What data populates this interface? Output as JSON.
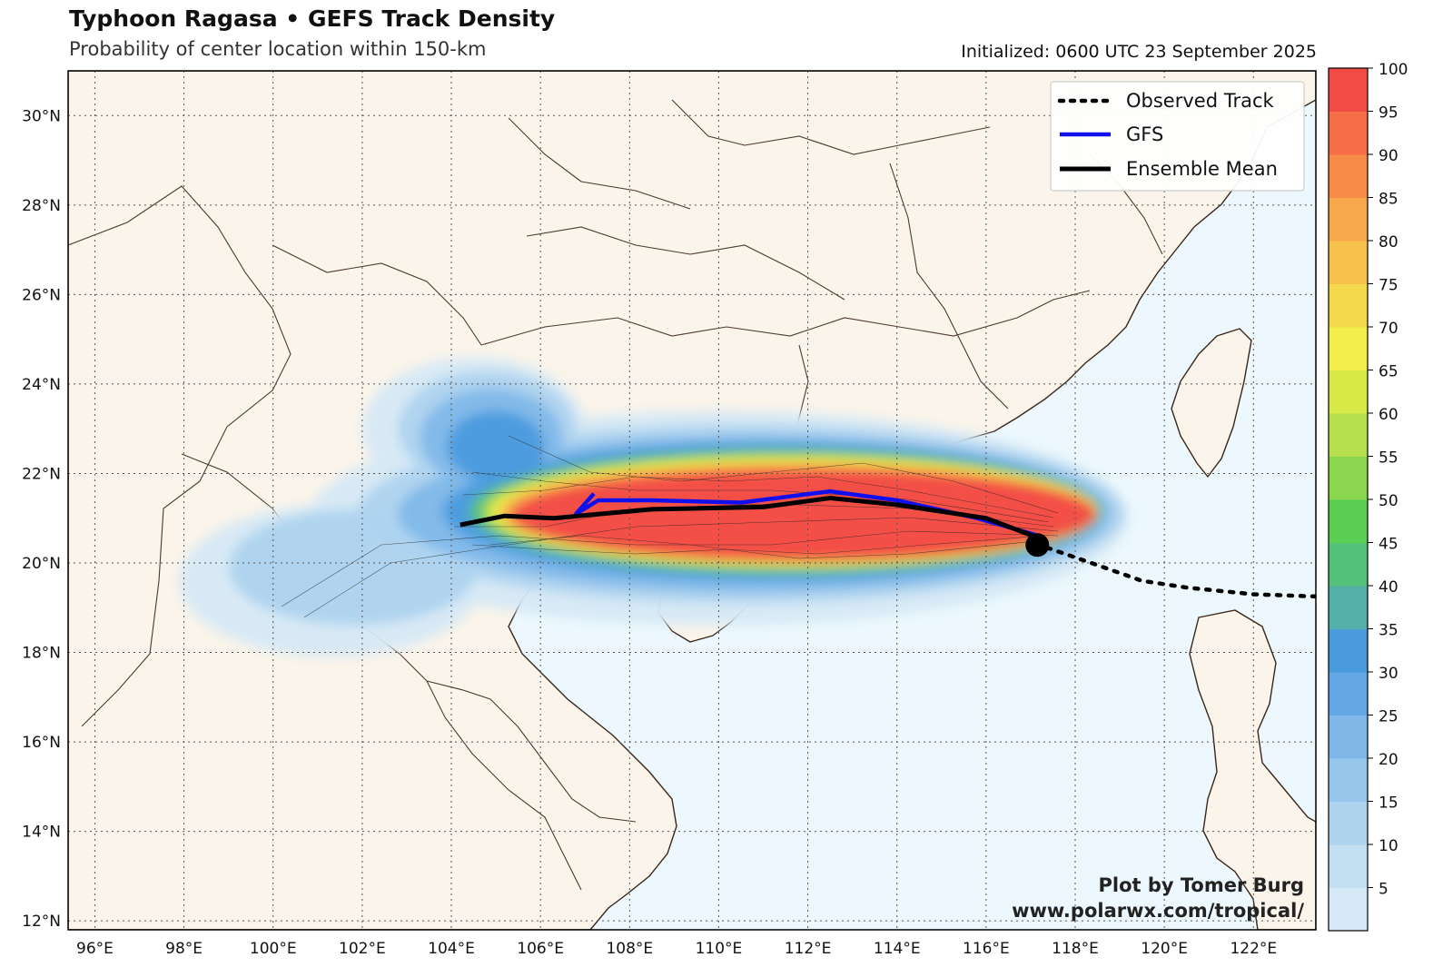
{
  "header": {
    "title": "Typhoon Ragasa • GEFS Track Density",
    "subtitle": "Probability of center location within 150-km",
    "initialized": "Initialized: 0600 UTC 23 September 2025"
  },
  "map": {
    "lon_range": [
      95.4,
      123.4
    ],
    "lat_range": [
      11.8,
      31.0
    ],
    "lon_ticks": [
      96,
      98,
      100,
      102,
      104,
      106,
      108,
      110,
      112,
      114,
      116,
      118,
      120,
      122
    ],
    "lat_ticks": [
      12,
      14,
      16,
      18,
      20,
      22,
      24,
      26,
      28,
      30
    ],
    "lon_tick_labels": [
      "96°E",
      "98°E",
      "100°E",
      "102°E",
      "104°E",
      "106°E",
      "108°E",
      "110°E",
      "112°E",
      "114°E",
      "116°E",
      "118°E",
      "120°E",
      "122°E"
    ],
    "lat_tick_labels": [
      "12°N",
      "14°N",
      "16°N",
      "18°N",
      "20°N",
      "22°N",
      "24°N",
      "26°N",
      "28°N",
      "30°N"
    ],
    "colors": {
      "land": "#faf4ea",
      "ocean": "#ecf8fd",
      "border": "#3a2618",
      "grid": "#555555"
    }
  },
  "legend": {
    "items": [
      {
        "label": "Observed Track",
        "style": "dotted",
        "color": "#000000"
      },
      {
        "label": "GFS",
        "style": "solid",
        "color": "#1010ee"
      },
      {
        "label": "Ensemble Mean",
        "style": "solid",
        "color": "#000000"
      }
    ]
  },
  "credits": {
    "line1": "Plot by Tomer Burg",
    "line2": "www.polarwx.com/tropical/"
  },
  "colorbar": {
    "tick_labels": [
      "5",
      "10",
      "15",
      "20",
      "25",
      "30",
      "35",
      "40",
      "45",
      "50",
      "55",
      "60",
      "65",
      "70",
      "75",
      "80",
      "85",
      "90",
      "95",
      "100"
    ],
    "colors": [
      "#d6e9f6",
      "#c4def2",
      "#aed3ef",
      "#97c6ec",
      "#7fb8e8",
      "#63a8e4",
      "#4a9ade",
      "#53b0a8",
      "#55c27a",
      "#5bcf54",
      "#8ad64f",
      "#b5df4d",
      "#d8e948",
      "#f3ee4a",
      "#f5d94c",
      "#f6c24c",
      "#f6a84b",
      "#f78c48",
      "#f66e47",
      "#f24b46"
    ]
  },
  "tracks": {
    "observed": [
      [
        123.4,
        19.25
      ],
      [
        122.0,
        19.3
      ],
      [
        120.5,
        19.45
      ],
      [
        119.5,
        19.6
      ],
      [
        118.5,
        19.95
      ],
      [
        117.2,
        20.4
      ]
    ],
    "gfs": [
      [
        117.2,
        20.6
      ],
      [
        115.8,
        21.0
      ],
      [
        114.0,
        21.4
      ],
      [
        112.5,
        21.6
      ],
      [
        110.5,
        21.35
      ],
      [
        108.5,
        21.4
      ],
      [
        107.3,
        21.4
      ],
      [
        106.8,
        21.1
      ],
      [
        107.2,
        21.55
      ]
    ],
    "ensemble_mean": [
      [
        117.2,
        20.55
      ],
      [
        116.0,
        21.0
      ],
      [
        114.0,
        21.3
      ],
      [
        112.5,
        21.45
      ],
      [
        111.0,
        21.25
      ],
      [
        108.5,
        21.2
      ],
      [
        106.3,
        21.0
      ],
      [
        105.2,
        21.05
      ],
      [
        104.2,
        20.85
      ]
    ],
    "current_position": [
      117.15,
      20.4
    ]
  }
}
